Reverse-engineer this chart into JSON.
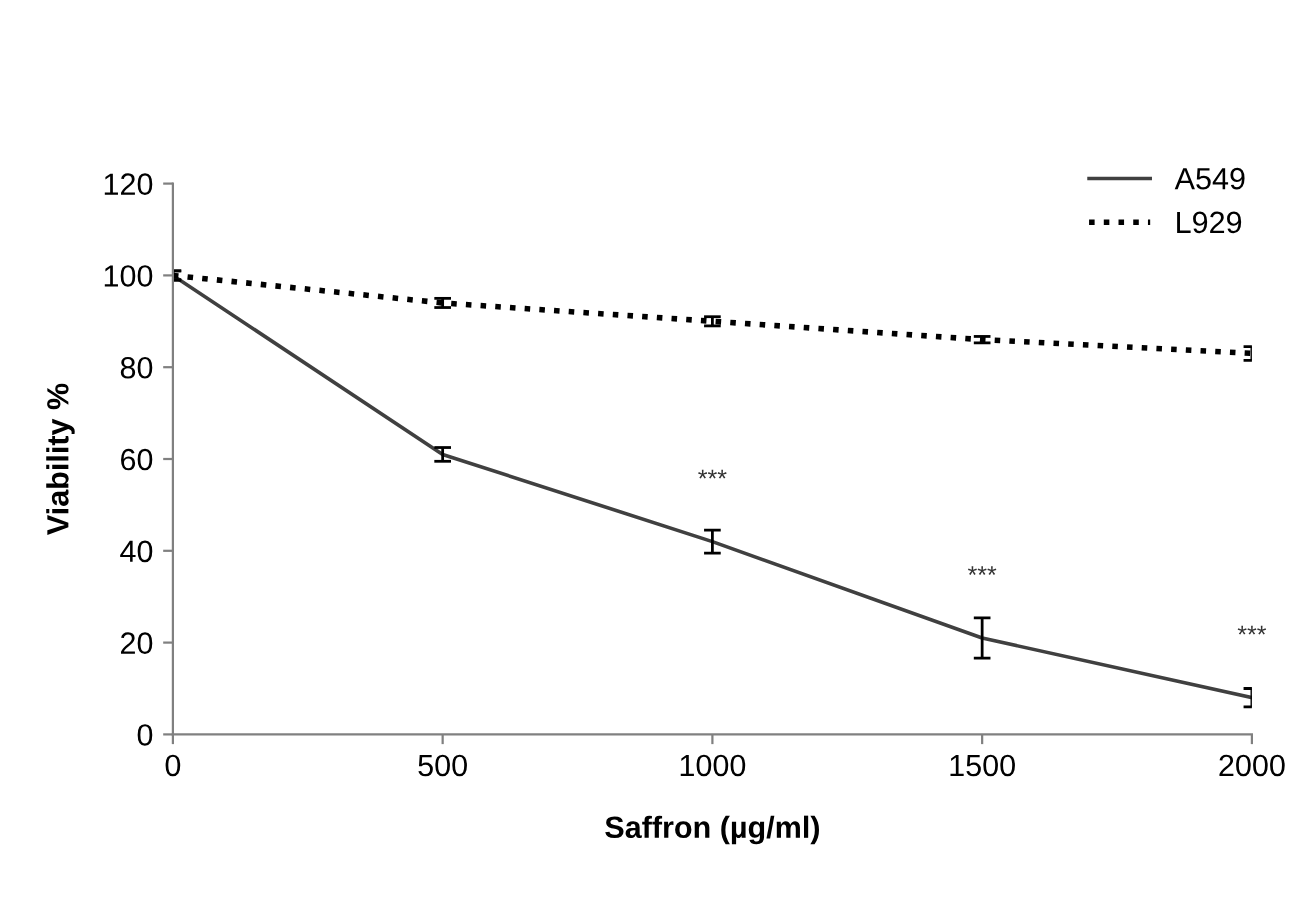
{
  "chart_data": {
    "type": "line",
    "xlabel": "Saffron (µg/ml)",
    "ylabel": "Viability %",
    "x": [
      0,
      500,
      1000,
      1500,
      2000
    ],
    "series": [
      {
        "name": "A549",
        "color": "#404040",
        "line_style": "solid",
        "values": [
          100,
          61,
          42,
          21,
          8
        ],
        "errors": [
          1,
          1.5,
          2.5,
          4.4,
          2
        ]
      },
      {
        "name": "L929",
        "color": "#000000",
        "line_style": "dotted",
        "values": [
          100,
          94,
          90,
          86,
          83
        ],
        "errors": [
          1,
          1,
          1,
          0.7,
          1.5
        ]
      }
    ],
    "xlim": [
      0,
      2000
    ],
    "xticks": [
      0,
      500,
      1000,
      1500,
      2000
    ],
    "ylim": [
      0,
      120
    ],
    "yticks": [
      0,
      20,
      40,
      60,
      80,
      100,
      120
    ],
    "annotations": [
      {
        "text": "***",
        "x": 1000,
        "y": 42
      },
      {
        "text": "***",
        "x": 1500,
        "y": 21
      },
      {
        "text": "***",
        "x": 2000,
        "y": 8
      }
    ],
    "grid": false,
    "legend": "top right",
    "marker": "none"
  }
}
